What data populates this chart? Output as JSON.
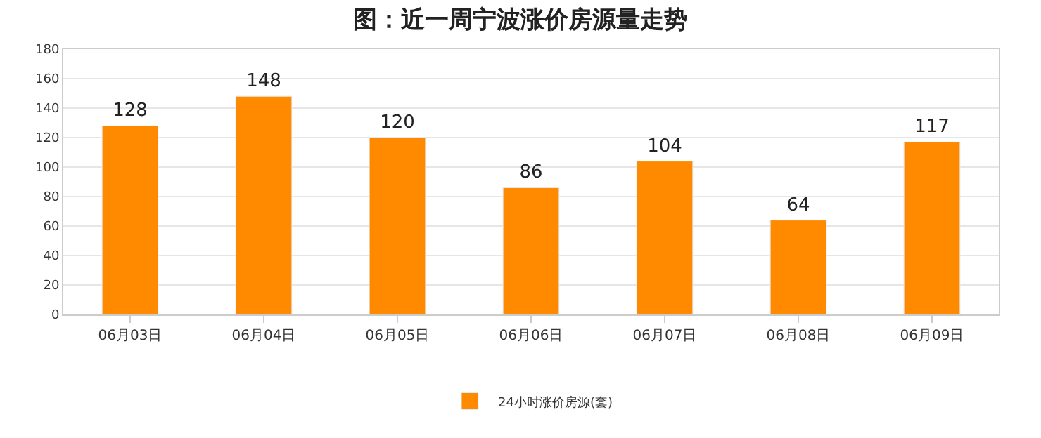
{
  "chart_data": {
    "type": "bar",
    "title": "图：近一周宁波涨价房源量走势",
    "categories": [
      "06月03日",
      "06月04日",
      "06月05日",
      "06月06日",
      "06月07日",
      "06月08日",
      "06月09日"
    ],
    "series": [
      {
        "name": "24小时涨价房源(套)",
        "color": "#ff8a00",
        "values": [
          128,
          148,
          120,
          86,
          104,
          64,
          117
        ]
      }
    ],
    "ylim": [
      0,
      180
    ],
    "yticks": [
      0,
      20,
      40,
      60,
      80,
      100,
      120,
      140,
      160,
      180
    ],
    "grid": "y",
    "legend": "bottom",
    "data_labels": true
  }
}
